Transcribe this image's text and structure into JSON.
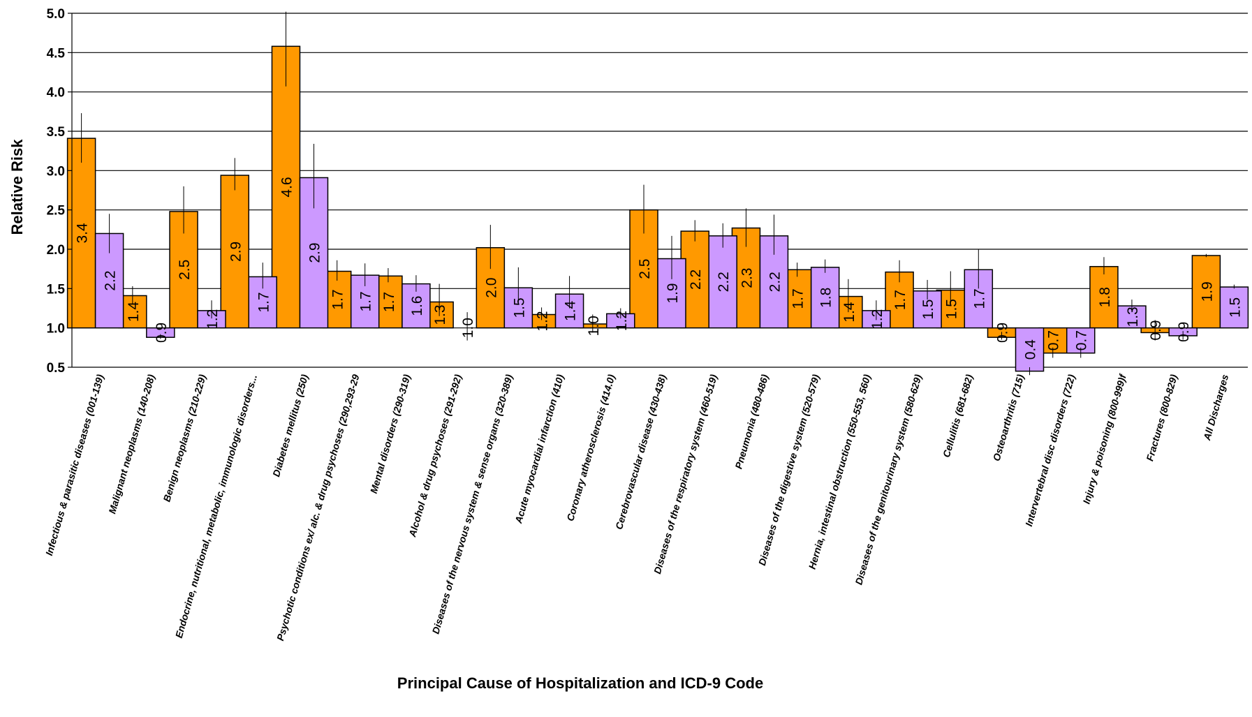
{
  "chart_data": {
    "type": "bar",
    "title": "",
    "xlabel": "Principal Cause of Hospitalization and ICD-9 Code",
    "ylabel": "Relative Risk",
    "ylim": [
      0.5,
      5.0
    ],
    "yticks": [
      "0.5",
      "1.0",
      "1.5",
      "2.0",
      "2.5",
      "3.0",
      "3.5",
      "4.0",
      "4.5",
      "5.0"
    ],
    "baseline": 1.0,
    "grid": true,
    "legend": "none",
    "colors": [
      "#ff9900",
      "#cc99ff"
    ],
    "categories": [
      "Infectious & parasitic diseases (001-139)",
      "Malignant neoplasms (140-208)",
      "Benign neoplasms (210-229)",
      "Endocrine, nutritional, metabolic, immunologic disorders...",
      "Diabetes mellitus (250)",
      "Psychotic conditions ex/ alc. & drug psychoses (290,293-29",
      "Mental disorders (290-319)",
      "Alcohol & drug psychoses (291-292)",
      "Diseases of the nervous system & sense organs (320-389)",
      "Acute myocardial infarction (410)",
      "Coronary atherosclerosis (414.0)",
      "Cerebrovascular disease (430-438)",
      "Diseases of the respiratory system (460-519)",
      "Pneumonia (480-486)",
      "Diseases of the digestive system (520-579)",
      "Hernia, intestinal obstruction (550-553, 560)",
      "Diseases of the genitourinary system (580-629)",
      "Cellulitis (681-682)",
      "Osteoarthritis (715)",
      "Intervertebral disc disorders (722)",
      "Injury & poisoning (800-999)f",
      "Fractures (800-829)",
      "All Discharges"
    ],
    "series": [
      {
        "values": [
          3.41,
          1.41,
          2.48,
          2.94,
          4.58,
          1.72,
          1.66,
          1.33,
          2.02,
          1.17,
          1.05,
          2.5,
          2.23,
          2.27,
          1.74,
          1.4,
          1.71,
          1.48,
          0.88,
          0.68,
          1.78,
          0.94,
          1.92
        ],
        "labels": [
          "3.4",
          "1.4",
          "2.5",
          "2.9",
          "4.6",
          "1.7",
          "1.7",
          "1.3",
          "2.0",
          "1.2",
          "1.0",
          "2.5",
          "2.2",
          "2.3",
          "1.7",
          "1.4",
          "1.7",
          "1.5",
          "0.9",
          "0.7",
          "1.8",
          "0.9",
          "1.9"
        ],
        "err_low": [
          3.1,
          1.3,
          2.2,
          2.75,
          4.07,
          1.6,
          1.58,
          1.15,
          1.75,
          1.1,
          0.94,
          2.2,
          2.1,
          2.03,
          1.65,
          1.2,
          1.58,
          1.28,
          0.85,
          0.62,
          1.68,
          0.84,
          1.9
        ],
        "err_high": [
          3.73,
          1.53,
          2.8,
          3.16,
          5.02,
          1.86,
          1.76,
          1.56,
          2.31,
          1.26,
          1.17,
          2.82,
          2.37,
          2.52,
          1.83,
          1.62,
          1.86,
          1.72,
          0.95,
          0.75,
          1.9,
          1.1,
          1.94
        ]
      },
      {
        "values": [
          2.2,
          0.88,
          1.22,
          1.65,
          2.91,
          1.67,
          1.56,
          1.0,
          1.51,
          1.43,
          1.18,
          1.88,
          2.17,
          2.17,
          1.77,
          1.22,
          1.47,
          1.74,
          0.45,
          0.68,
          1.28,
          0.9,
          1.52
        ],
        "labels": [
          "2.2",
          "0.9",
          "1.2",
          "1.7",
          "2.9",
          "1.7",
          "1.6",
          "1.0",
          "1.5",
          "1.4",
          "1.2",
          "1.9",
          "2.2",
          "2.2",
          "1.8",
          "1.2",
          "1.5",
          "1.7",
          "0.4",
          "0.7",
          "1.3",
          "0.9",
          "1.5"
        ],
        "err_low": [
          1.95,
          0.86,
          1.12,
          1.5,
          2.52,
          1.53,
          1.46,
          0.84,
          1.3,
          1.25,
          1.12,
          1.62,
          2.02,
          1.93,
          1.7,
          1.1,
          1.36,
          1.5,
          0.4,
          0.62,
          1.2,
          0.85,
          1.5
        ],
        "err_high": [
          2.45,
          0.92,
          1.35,
          1.83,
          3.34,
          1.82,
          1.67,
          1.2,
          1.77,
          1.66,
          1.25,
          2.17,
          2.33,
          2.44,
          1.87,
          1.35,
          1.61,
          2.0,
          0.5,
          0.75,
          1.36,
          0.96,
          1.55
        ]
      }
    ]
  }
}
